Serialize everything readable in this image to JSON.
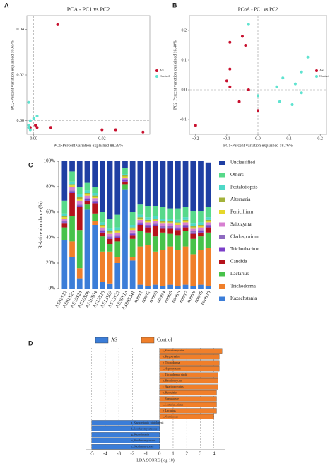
{
  "chart_data": [
    {
      "type": "scatter",
      "panel_label": "A",
      "title": "PCA - PC1 vs PC2",
      "x_label": "PC1-Percent variation explained 88.39%",
      "y_label": "PC2-Percent variation explained 10.65%",
      "xlim": [
        -0.002,
        0.034
      ],
      "ylim": [
        -0.006,
        0.046
      ],
      "xticks": [
        {
          "value": 0,
          "label": "0.00"
        },
        {
          "value": 0.02,
          "label": "0.02"
        }
      ],
      "yticks": [
        {
          "value": 0,
          "label": "0.00"
        },
        {
          "value": 0.02,
          "label": "0.02"
        },
        {
          "value": 0.04,
          "label": "0.04"
        }
      ],
      "series": [
        {
          "name": "AS",
          "color": "#c8102e",
          "x": [
            0.007,
            -0.001,
            0.0005,
            0.001,
            0.005,
            0.02,
            0.024,
            0.032
          ],
          "values": [
            0.042,
            -0.003,
            -0.002,
            -0.003,
            -0.003,
            -0.004,
            -0.004,
            -0.005
          ]
        },
        {
          "name": "Control",
          "color": "#5fe3d0",
          "x": [
            -0.0015,
            -0.0015,
            -0.001,
            0.0,
            -0.0015,
            -0.001,
            0.001
          ],
          "values": [
            0.008,
            -0.002,
            0.0,
            0.001,
            -0.003,
            -0.004,
            0.002
          ]
        }
      ]
    },
    {
      "type": "scatter",
      "panel_label": "B",
      "title": "PCoA - PC1 vs PC2",
      "x_label": "PC1-Percent variation explained 18.76%",
      "y_label": "PC2-Percent variation explained 16.40%",
      "xlim": [
        -0.22,
        0.22
      ],
      "ylim": [
        -0.15,
        0.25
      ],
      "xticks": [
        -0.2,
        -0.1,
        {
          "value": 0,
          "label": "0.0"
        },
        0.1,
        0.2
      ],
      "yticks": [
        -0.1,
        {
          "value": 0,
          "label": "0.0"
        },
        0.1,
        0.2
      ],
      "series": [
        {
          "name": "AS",
          "color": "#c8102e",
          "x": [
            -0.2,
            -0.09,
            -0.05,
            -0.04,
            -0.1,
            -0.09,
            -0.03,
            -0.06,
            0.0,
            -0.09
          ],
          "values": [
            -0.12,
            0.16,
            0.18,
            0.15,
            0.03,
            0.07,
            0.0,
            -0.04,
            -0.07,
            0.01
          ]
        },
        {
          "name": "Control",
          "color": "#5fe3d0",
          "x": [
            -0.03,
            0.16,
            0.14,
            0.12,
            0.08,
            0.06,
            0.07,
            0.14,
            0.0,
            0.11
          ],
          "values": [
            0.22,
            0.11,
            0.06,
            0.02,
            0.04,
            0.01,
            -0.04,
            -0.01,
            -0.02,
            -0.05
          ]
        }
      ]
    },
    {
      "type": "stacked_bar",
      "panel_label": "C",
      "y_label": "Relative abundance (%)",
      "ylim": [
        0,
        100
      ],
      "yticks": [
        {
          "value": 0,
          "label": "0%"
        },
        {
          "value": 20,
          "label": "20%"
        },
        {
          "value": 40,
          "label": "40%"
        },
        {
          "value": 60,
          "label": "60%"
        },
        {
          "value": 80,
          "label": "80%"
        },
        {
          "value": 100,
          "label": "100%"
        }
      ],
      "categories": [
        "AS01S12",
        "AS01S20",
        "AS10S24",
        "AS10S08",
        "AS10S04",
        "AS12S16",
        "AS13S02",
        "AS13S22",
        "AS30S13",
        "AS90S241",
        "contr1",
        "contr2",
        "contr3",
        "contr4",
        "contr5",
        "contr6",
        "contr7",
        "contr8",
        "contr9",
        "contr10"
      ],
      "series": [
        {
          "name": "Kazachstania",
          "color": "#3b7dd8",
          "values": [
            38,
            25,
            8,
            62,
            50,
            5,
            4,
            20,
            78,
            22,
            3,
            2,
            3,
            2,
            3,
            2,
            3,
            2,
            3,
            2
          ]
        },
        {
          "name": "Trichoderma",
          "color": "#f07f2a",
          "values": [
            0,
            12,
            8,
            0,
            3,
            24,
            25,
            5,
            0,
            3,
            30,
            32,
            26,
            28,
            30,
            28,
            30,
            25,
            27,
            30
          ]
        },
        {
          "name": "Lactarius",
          "color": "#47c24a",
          "values": [
            10,
            20,
            30,
            4,
            6,
            12,
            6,
            12,
            4,
            14,
            12,
            10,
            12,
            14,
            10,
            12,
            12,
            12,
            11,
            12
          ]
        },
        {
          "name": "Candida",
          "color": "#b5121b",
          "values": [
            3,
            18,
            18,
            3,
            8,
            3,
            4,
            3,
            2,
            3,
            5,
            4,
            8,
            3,
            4,
            4,
            3,
            4,
            3,
            4
          ]
        },
        {
          "name": "Trichothecium",
          "color": "#7b3fc9",
          "values": [
            1,
            1,
            1,
            1,
            1,
            1,
            1,
            1,
            1,
            1,
            1,
            1,
            1,
            1,
            1,
            1,
            1,
            1,
            1,
            1
          ]
        },
        {
          "name": "Cladosporium",
          "color": "#8e6ac0",
          "values": [
            1,
            1,
            1,
            1,
            1,
            1,
            1,
            1,
            1,
            1,
            1,
            1,
            1,
            1,
            1,
            1,
            1,
            1,
            1,
            1
          ]
        },
        {
          "name": "Saitozyma",
          "color": "#d77fd1",
          "values": [
            2,
            3,
            3,
            2,
            2,
            2,
            2,
            2,
            1,
            2,
            2,
            2,
            2,
            2,
            2,
            2,
            2,
            2,
            2,
            2
          ]
        },
        {
          "name": "Penicillium",
          "color": "#e6d72a",
          "values": [
            1,
            1,
            1,
            1,
            1,
            1,
            1,
            1,
            1,
            1,
            1,
            1,
            1,
            1,
            1,
            1,
            1,
            1,
            1,
            1
          ]
        },
        {
          "name": "Alternaria",
          "color": "#a3b23a",
          "values": [
            1,
            1,
            2,
            1,
            1,
            1,
            1,
            1,
            1,
            1,
            1,
            1,
            1,
            1,
            1,
            1,
            1,
            1,
            1,
            1
          ]
        },
        {
          "name": "Pestalotiopsis",
          "color": "#4fd8c7",
          "values": [
            2,
            2,
            2,
            2,
            2,
            2,
            2,
            2,
            1,
            2,
            2,
            2,
            2,
            2,
            2,
            2,
            2,
            2,
            2,
            2
          ]
        },
        {
          "name": "Others",
          "color": "#57d98a",
          "values": [
            10,
            8,
            6,
            6,
            5,
            8,
            8,
            10,
            5,
            10,
            8,
            9,
            8,
            9,
            8,
            9,
            8,
            10,
            9,
            8
          ]
        },
        {
          "name": "Unclassified",
          "color": "#1f3fa3",
          "values": [
            31,
            8,
            20,
            17,
            20,
            40,
            45,
            42,
            5,
            40,
            34,
            35,
            35,
            36,
            37,
            37,
            36,
            39,
            39,
            35
          ]
        }
      ]
    },
    {
      "type": "lda_bar",
      "panel_label": "D",
      "x_label": "LDA SCORE (log 10)",
      "xlim": [
        -5.4,
        4.8
      ],
      "xticks": [
        -5,
        -4,
        -3,
        -2,
        -1,
        0,
        1,
        2,
        3,
        4
      ],
      "series": [
        {
          "name": "AS",
          "color": "#3b7dd8",
          "categories": [
            "s_Kazachstania_pintolopesii",
            "f_Saccharomycetaceae",
            "g_Kazachstania",
            "o_Saccharomycetales",
            "c_Saccharomycetes"
          ],
          "values": [
            -5.0,
            -5.0,
            -5.0,
            -5.0,
            -5.0
          ]
        },
        {
          "name": "Control",
          "color": "#f07f2a",
          "categories": [
            "c_Sordariomycetes",
            "o_Hypocreales",
            "g_Trichoderma",
            "f_Hypocreaceae",
            "s_Trichoderma_viride",
            "p_Basidiomycota",
            "c_Agaricomycetes",
            "o_Russulales",
            "f_Russulaceae",
            "s_Lactarius_hirtus",
            "g_Lactarius",
            "f_Nectriaceae"
          ],
          "values": [
            4.6,
            4.4,
            4.4,
            4.4,
            4.3,
            4.3,
            4.3,
            4.2,
            4.2,
            4.2,
            4.2,
            4.0
          ]
        }
      ]
    }
  ]
}
